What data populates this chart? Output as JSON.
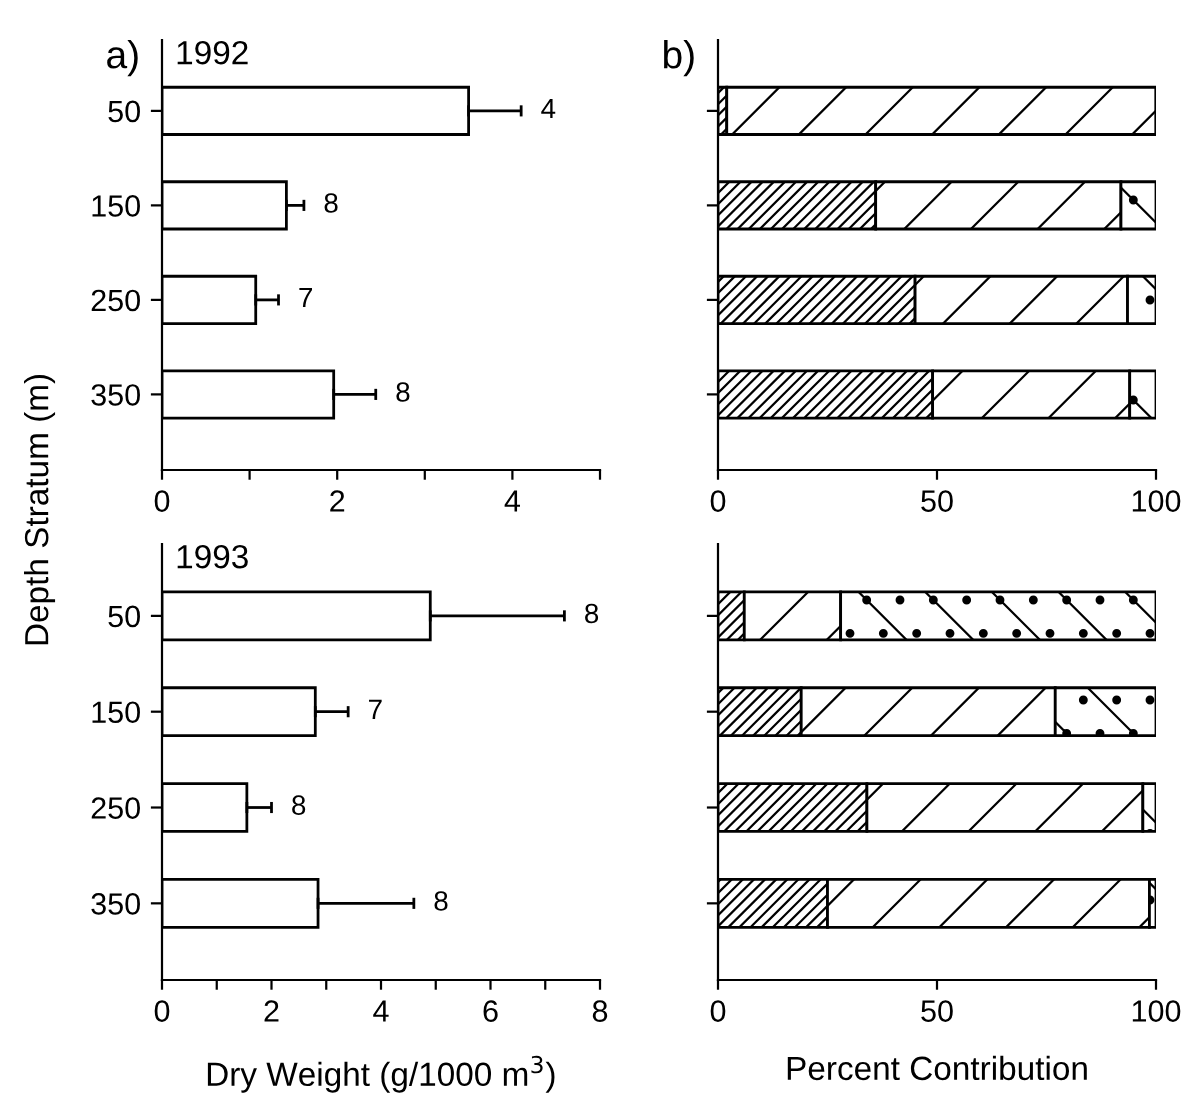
{
  "chart_data": [
    {
      "type": "bar",
      "orientation": "horizontal",
      "title": "1992",
      "ylabel": "Depth Stratum (m)",
      "categories": [
        "50",
        "150",
        "250",
        "350"
      ],
      "values": [
        3.5,
        1.42,
        1.07,
        1.96
      ],
      "color": "#ffffff",
      "errors": [
        [
          3.5,
          4.1
        ],
        [
          1.42,
          1.62
        ],
        [
          1.07,
          1.33
        ],
        [
          1.96,
          2.44
        ]
      ],
      "xlim": [
        0,
        5
      ],
      "xticks": [
        0,
        {
          "value": 1,
          "label": null
        },
        2,
        {
          "value": 3,
          "label": null
        },
        4,
        {
          "value": 5,
          "label": null
        }
      ],
      "annotations": [
        "a)",
        {
          "text": "4",
          "x": 4.1,
          "y": "50"
        },
        {
          "text": "8",
          "x": 1.62,
          "y": "150"
        },
        {
          "text": "7",
          "x": 1.33,
          "y": "250"
        },
        {
          "text": "8",
          "x": 2.44,
          "y": "350"
        }
      ]
    },
    {
      "type": "bar",
      "orientation": "horizontal",
      "stacked": true,
      "categories": [
        null,
        null,
        null,
        null
      ],
      "tick_labels": "x",
      "series": [
        {
          "color": "#000000",
          "values": [
            2,
            36,
            45,
            49
          ]
        },
        {
          "color": "#000000",
          "values": [
            98,
            56,
            48.5,
            45
          ]
        },
        {
          "color": "#000000",
          "values": [
            0,
            8,
            6.5,
            6
          ]
        }
      ],
      "xlim": [
        0,
        100
      ],
      "xticks": [
        0,
        50,
        100
      ],
      "annotations": [
        "b)"
      ]
    },
    {
      "type": "bar",
      "orientation": "horizontal",
      "title": "1993",
      "xlabel": "Dry Weight (g/1000 m$^{3}$)",
      "categories": [
        "50",
        "150",
        "250",
        "350"
      ],
      "values": [
        4.9,
        2.8,
        1.55,
        2.85
      ],
      "color": "#ffffff",
      "errors": [
        [
          4.9,
          7.35
        ],
        [
          2.8,
          3.4
        ],
        [
          1.55,
          2.0
        ],
        [
          2.85,
          4.6
        ]
      ],
      "xlim": [
        0,
        8
      ],
      "xticks": [
        0,
        {
          "value": 1,
          "label": null
        },
        2,
        {
          "value": 3,
          "label": null
        },
        4,
        {
          "value": 5,
          "label": null
        },
        6,
        {
          "value": 7,
          "label": null
        },
        8
      ],
      "annotations": [
        {
          "text": "8",
          "x": 7.35,
          "y": "50"
        },
        {
          "text": "7",
          "x": 3.4,
          "y": "150"
        },
        {
          "text": "8",
          "x": 2.0,
          "y": "250"
        },
        {
          "text": "8",
          "x": 4.6,
          "y": "350"
        }
      ]
    },
    {
      "type": "bar",
      "orientation": "horizontal",
      "stacked": true,
      "xlabel": "Percent Contribution",
      "categories": [
        null,
        null,
        null,
        null
      ],
      "tick_labels": "x",
      "series": [
        {
          "color": "#000000",
          "values": [
            6,
            19,
            34,
            25
          ]
        },
        {
          "color": "#000000",
          "values": [
            22,
            58,
            63,
            73.5
          ]
        },
        {
          "color": "#000000",
          "values": [
            72,
            23,
            3,
            1.5
          ]
        }
      ],
      "xlim": [
        0,
        100
      ],
      "xticks": [
        0,
        50,
        100
      ]
    }
  ]
}
